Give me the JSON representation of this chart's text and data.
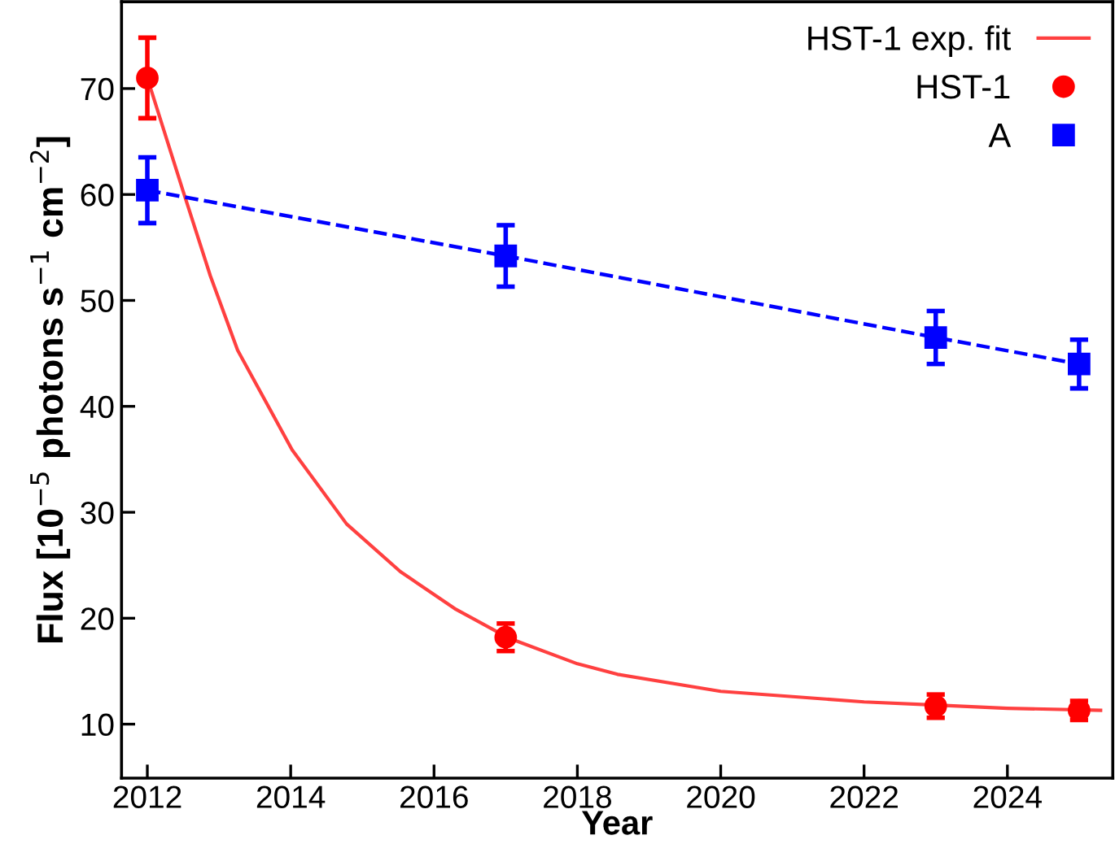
{
  "chart_data": {
    "type": "scatter",
    "xlabel": "Year",
    "ylabel": "Flux [10$^{−5}$ photons s$^{−1}$ cm$^{−2}$]",
    "xlim": [
      2011.64,
      2025.47
    ],
    "ylim": [
      4.9,
      78.2
    ],
    "xticks": [
      2012,
      2014,
      2016,
      2018,
      2020,
      2022,
      2024
    ],
    "yticks": [
      10,
      20,
      30,
      40,
      50,
      60,
      70
    ],
    "grid": false,
    "legend": "top right",
    "series": [
      {
        "name": "HST-1 exp. fit",
        "type": "line",
        "color": "#ff4040",
        "marker": "none",
        "line_style": "solid",
        "x": [
          2012,
          2012.5,
          2012.88,
          2013.26,
          2014.02,
          2014.78,
          2015.53,
          2016.29,
          2017.05,
          2018,
          2018.56,
          2020,
          2022,
          2023,
          2024,
          2025.3
        ],
        "values": [
          71,
          60.3,
          52.3,
          45.3,
          35.9,
          28.9,
          24.4,
          20.9,
          18.1,
          15.7,
          14.7,
          13.1,
          12.1,
          11.8,
          11.5,
          11.3
        ]
      },
      {
        "name": "HST-1",
        "color": "#ff0000",
        "marker": "circle",
        "x": [
          2012,
          2017,
          2023,
          2025
        ],
        "values": [
          71,
          18.2,
          11.7,
          11.3
        ],
        "errors": [
          3.8,
          1.3,
          1.1,
          0.9
        ]
      },
      {
        "name": "A",
        "type": "line",
        "color": "#0000ff",
        "marker": "square",
        "line_style": "dashed",
        "x": [
          2012,
          2017,
          2023,
          2025
        ],
        "values": [
          60.4,
          54.2,
          46.5,
          44
        ],
        "errors": [
          3.1,
          2.9,
          2.5,
          2.3
        ]
      }
    ]
  }
}
